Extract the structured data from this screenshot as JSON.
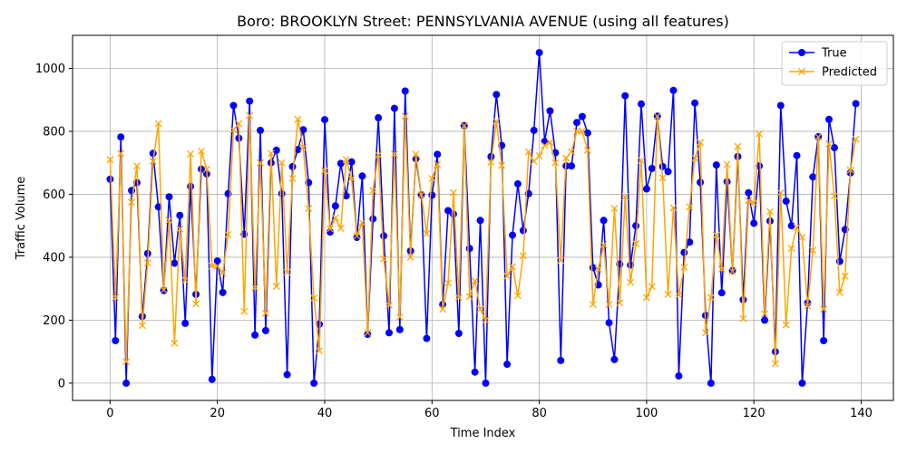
{
  "chart_data": {
    "type": "line",
    "title": "Boro: BROOKLYN Street: PENNSYLVANIA AVENUE (using all features)",
    "xlabel": "Time Index",
    "ylabel": "Traffic Volume",
    "xlim": [
      -7,
      146
    ],
    "ylim": [
      -55,
      1105
    ],
    "xticks": [
      0,
      20,
      40,
      60,
      80,
      100,
      120,
      140
    ],
    "yticks": [
      0,
      200,
      400,
      600,
      800,
      1000
    ],
    "grid": true,
    "legend_position": "top-right",
    "series": [
      {
        "name": "True",
        "color": "#0000ff",
        "marker": "circle",
        "values": [
          648,
          135,
          782,
          0,
          612,
          637,
          212,
          412,
          730,
          560,
          294,
          592,
          381,
          533,
          190,
          625,
          282,
          680,
          665,
          12,
          388,
          288,
          602,
          882,
          778,
          473,
          896,
          153,
          803,
          167,
          700,
          740,
          602,
          27,
          688,
          742,
          805,
          637,
          0,
          187,
          837,
          480,
          563,
          698,
          595,
          703,
          463,
          658,
          155,
          522,
          843,
          468,
          160,
          873,
          170,
          928,
          420,
          713,
          598,
          142,
          597,
          727,
          250,
          548,
          537,
          158,
          818,
          428,
          35,
          517,
          0,
          720,
          917,
          755,
          60,
          470,
          633,
          485,
          602,
          803,
          1050,
          768,
          865,
          732,
          72,
          690,
          690,
          828,
          847,
          795,
          367,
          312,
          517,
          192,
          75,
          378,
          913,
          375,
          500,
          887,
          617,
          682,
          848,
          688,
          672,
          930,
          23,
          415,
          448,
          890,
          638,
          215,
          0,
          693,
          287,
          640,
          358,
          720,
          265,
          605,
          508,
          690,
          200,
          515,
          100,
          882,
          578,
          500,
          723,
          0,
          255,
          655,
          783,
          135,
          838,
          748,
          387,
          488,
          668,
          888
        ]
      },
      {
        "name": "Predicted",
        "color": "#ffa500",
        "marker": "x",
        "values": [
          710,
          272,
          730,
          68,
          575,
          690,
          183,
          382,
          705,
          825,
          296,
          517,
          127,
          490,
          327,
          728,
          252,
          737,
          680,
          372,
          372,
          350,
          472,
          805,
          825,
          228,
          850,
          303,
          700,
          222,
          730,
          308,
          700,
          352,
          650,
          838,
          748,
          555,
          270,
          103,
          675,
          490,
          525,
          492,
          710,
          650,
          468,
          510,
          160,
          612,
          725,
          395,
          248,
          727,
          210,
          848,
          400,
          727,
          598,
          475,
          650,
          695,
          235,
          318,
          605,
          272,
          818,
          275,
          325,
          235,
          200,
          702,
          832,
          692,
          340,
          370,
          278,
          405,
          735,
          705,
          722,
          755,
          765,
          700,
          390,
          715,
          735,
          800,
          800,
          740,
          250,
          362,
          440,
          250,
          555,
          255,
          592,
          320,
          443,
          708,
          272,
          307,
          848,
          652,
          282,
          557,
          280,
          368,
          560,
          715,
          765,
          160,
          272,
          470,
          362,
          695,
          355,
          752,
          205,
          580,
          572,
          792,
          220,
          545,
          62,
          605,
          185,
          428,
          495,
          463,
          245,
          422,
          782,
          235,
          760,
          595,
          288,
          340,
          677,
          775
        ]
      }
    ]
  }
}
